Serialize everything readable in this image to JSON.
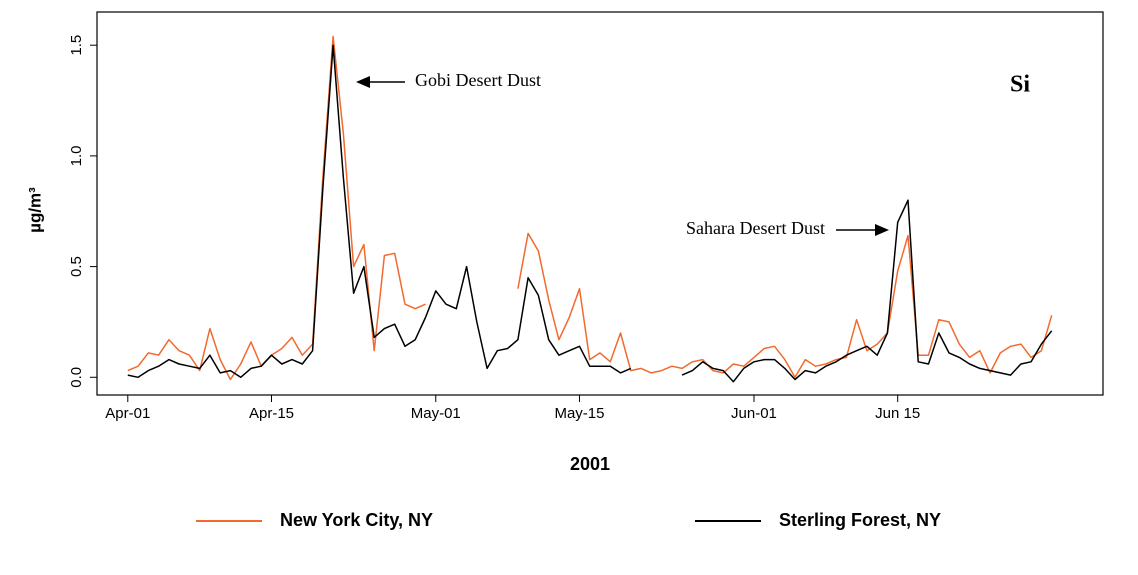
{
  "chart_data": {
    "type": "line",
    "xlabel": "2001",
    "ylabel": "µg/m³",
    "annotations": [
      "Gobi Desert Dust",
      "Sahara Desert Dust",
      "Si"
    ],
    "x": [
      0,
      1,
      2,
      3,
      4,
      5,
      6,
      7,
      8,
      9,
      10,
      11,
      12,
      13,
      14,
      15,
      16,
      17,
      18,
      19,
      20,
      21,
      22,
      23,
      24,
      25,
      26,
      27,
      28,
      29,
      30,
      31,
      32,
      33,
      34,
      35,
      36,
      37,
      38,
      39,
      40,
      41,
      42,
      43,
      44,
      45,
      46,
      47,
      48,
      49,
      50,
      51,
      52,
      53,
      54,
      55,
      56,
      57,
      58,
      59,
      60,
      61,
      62,
      63,
      64,
      65,
      66,
      67,
      68,
      69,
      70,
      71,
      72,
      73,
      74,
      75,
      76,
      77,
      78,
      79,
      80,
      81,
      82,
      83,
      84,
      85,
      86,
      87,
      88,
      89,
      90
    ],
    "series": [
      {
        "name": "New York City, NY",
        "color": "#f26a2e",
        "values": [
          0.03,
          0.05,
          0.11,
          0.1,
          0.17,
          0.12,
          0.1,
          0.03,
          0.22,
          0.08,
          -0.01,
          0.06,
          0.16,
          0.05,
          0.1,
          0.13,
          0.18,
          0.1,
          0.15,
          0.9,
          1.54,
          1.1,
          0.5,
          0.6,
          0.12,
          0.55,
          0.56,
          0.33,
          0.31,
          0.33,
          null,
          null,
          null,
          null,
          null,
          null,
          null,
          null,
          0.4,
          0.65,
          0.57,
          0.35,
          0.17,
          0.27,
          0.4,
          0.08,
          0.11,
          0.07,
          0.2,
          0.03,
          0.04,
          0.02,
          0.03,
          0.05,
          0.04,
          0.07,
          0.08,
          0.03,
          0.02,
          0.06,
          0.05,
          0.09,
          0.13,
          0.14,
          0.08,
          0.0,
          0.08,
          0.05,
          0.06,
          0.08,
          0.09,
          0.26,
          0.12,
          0.15,
          0.2,
          0.48,
          0.64,
          0.1,
          0.1,
          0.26,
          0.25,
          0.15,
          0.09,
          0.12,
          0.02,
          0.11,
          0.14,
          0.15,
          0.09,
          0.12,
          0.28
        ]
      },
      {
        "name": "Sterling Forest, NY",
        "color": "#000000",
        "values": [
          0.01,
          0.0,
          0.03,
          0.05,
          0.08,
          0.06,
          0.05,
          0.04,
          0.1,
          0.02,
          0.03,
          0.0,
          0.04,
          0.05,
          0.1,
          0.06,
          0.08,
          0.06,
          0.12,
          0.85,
          1.5,
          0.9,
          0.38,
          0.5,
          0.18,
          0.22,
          0.24,
          0.14,
          0.17,
          0.27,
          0.39,
          0.33,
          0.31,
          0.5,
          0.25,
          0.04,
          0.12,
          0.13,
          0.17,
          0.45,
          0.37,
          0.17,
          0.1,
          0.12,
          0.14,
          0.05,
          0.05,
          0.05,
          0.02,
          0.04,
          null,
          null,
          null,
          null,
          0.01,
          0.03,
          0.07,
          0.04,
          0.03,
          -0.02,
          0.04,
          0.07,
          0.08,
          0.08,
          0.04,
          -0.01,
          0.03,
          0.02,
          0.05,
          0.07,
          0.1,
          0.12,
          0.14,
          0.1,
          0.2,
          0.7,
          0.8,
          0.07,
          0.06,
          0.2,
          0.11,
          0.09,
          0.06,
          0.04,
          0.03,
          0.02,
          0.01,
          0.06,
          0.07,
          0.15,
          0.21
        ]
      }
    ],
    "xlim": [
      -3,
      95
    ],
    "xticks": [
      {
        "value": 0,
        "label": "Apr-01"
      },
      {
        "value": 14,
        "label": "Apr-15"
      },
      {
        "value": 30,
        "label": "May-01"
      },
      {
        "value": 44,
        "label": "May-15"
      },
      {
        "value": 61,
        "label": "Jun-01"
      },
      {
        "value": 75,
        "label": "Jun 15"
      }
    ],
    "ylim": [
      -0.08,
      1.65
    ],
    "yticks": [
      {
        "value": 0,
        "label": "0.0"
      },
      0.5,
      {
        "value": 1,
        "label": "1.0"
      },
      1.5
    ],
    "legend": "bottom"
  }
}
